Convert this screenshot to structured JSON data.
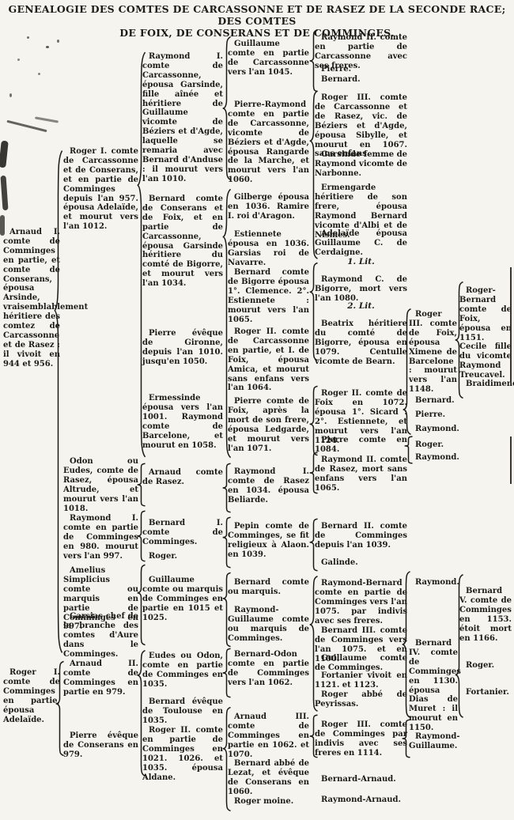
{
  "title": {
    "line1": "GENEALOGIE DES COMTES DE CARCASSONNE ET DE RASEZ DE LA SECONDE RACE; DES COMTES",
    "line2": "DE FOIX, DE CONSERANS ET DE COMMINGES."
  },
  "colors": {
    "ink": "#1d1b18",
    "paper": "#f6f4ef"
  },
  "generations": {
    "col1": [
      "Arnaud I. comte de Comminges en partie, et comte de Conserans, épousa Arsinde, vraisemblablement héritiere des comtez de Carcassonne et de Rasez : il vivoit en 944 et 956.",
      "Roger I. comte de Comminges en partie, épousa Adelaïde."
    ],
    "col2": [
      "Roger I. comte de Carcassonne et de Conserans, et en partie de Comminges depuis l'an 957. épousa Adelaïde, et mourut vers l'an 1012.",
      "Odon ou Eudes, comte de Rasez, épousa Altrude, et mourut vers l'an 1018.",
      "Raymond I. comte en partie de Comminges en 980. mourut vers l'an 997.",
      "Amelius Simplicius comte ou marquis en partie de Comminges en 997.",
      "Garsias chef de la branche des comtes d'Aure dans le Comminges.",
      "Arnaud II. comte de Comminges en partie en 979.",
      "Pierre évêque de Conserans en 979."
    ],
    "col3": [
      "Raymond I. comte de Carcassonne, épousa Garsinde, fille aînée et héritiere de Guillaume vicomte de Béziers et d'Agde, laquelle se remaria avec Bernard d'Anduse : il mourut vers l'an 1010.",
      "Bernard comte de Conserans et de Foix, et en partie de Carcassonne, épousa Garsinde héritiere du comté de Bigorre, et mourut vers l'an 1034.",
      "Pierre évêque de Gironne, depuis l'an 1010. jusqu'en 1050.",
      "Ermessinde épousa vers l'an 1001. Raymond comte de Barcelone, et mourut en 1058.",
      "Arnaud comte de Rasez.",
      "Bernard I. comte de Comminges.",
      "Roger.",
      "Guillaume comte ou marquis de Comminges en partie en 1015 et 1025.",
      "Eudes ou Odon, comte en partie de Comminges en 1035.",
      "Bernard évêque de Toulouse en 1035.",
      "Roger II. comte en partie de Comminges en 1021. 1026. et 1035. épousa Aldane."
    ],
    "col4": [
      "Guillaume comte en partie de Carcassonne vers l'an 1045.",
      "Pierre-Raymond comte en partie de Carcassonne, vicomte de Béziers et d'Agde, épousa Rangarde de la Marche, et mourut vers l'an 1060.",
      "Gilberge épousa en 1036. Ramire I. roi d'Aragon.",
      "Estiennete épousa en 1036. Garsias roi de Navarre.",
      "Bernard comte de Bigorre épousa 1°. Clemence. 2°. Estiennete : mourut vers l'an 1065.",
      "Roger II. comte de Carcassonne en partie, et I. de Foix, épousa Amica, et mourut sans enfans vers l'an 1064.",
      "Pierre comte de Foix, après la mort de son frere, épousa Ledgarde, et mourut vers l'an 1071.",
      "Raymond I. comte de Rasez en 1034. épousa Beliarde.",
      "Pepin comte de Comminges, se fit religieux à Alaon. en 1039.",
      "Bernard comte ou marquis.",
      "Raymond-Guillaume comte ou marquis de Comminges.",
      "Bernard-Odon comte en partie de Comminges vers l'an 1062.",
      "Arnaud III. comte de Comminges en partie en 1062. et 1070.",
      "Bernard abbé de Lezat, et évêque de Conserans en 1060.",
      "Roger moine."
    ],
    "col5": [
      "Raymond II. comte en partie de Carcassonne avec ses freres.",
      "Pierre.",
      "Bernard.",
      "Roger III. comte de Carcassonne et de Rasez, vic. de Béziers et d'Agde, épousa Sibylle, et mourut en 1067. sans enfans.",
      "Garsinde femme de Raymond vicomte de Narbonne.",
      "Ermengarde héritiere de son frere, épousa Raymond Bernard vicomte d'Albi et de Nismes.",
      "Adelaïde épousa Guillaume C. de Cerdaigne.",
      "1. Lit.",
      "Raymond C. de Bigorre, mort vers l'an 1080.",
      "2. Lit.",
      "Beatrix héritiere du comté de Bigorre, épousa en 1079. Centulle vicomte de Bearn.",
      "Roger II. comte de Foix en 1072. épousa 1°. Sicard : 2°. Estiennete, et mourut vers l'an 1124.",
      "Pierre comte en 1084.",
      "Raymond II. comte de Rasez, mort sans enfans vers l'an 1065.",
      "Bernard II. comte de Comminges depuis l'an 1039.",
      "Galinde.",
      "Raymond-Bernard comte en partie de Comminges vers l'an 1075. par indivis avec ses freres.",
      "Bernard III. comte de Comminges vers l'an 1075. et en 1100.",
      "Guillaume comte de Comminges.",
      "Fortanier vivoit en 1121. et 1123.",
      "Roger abbé de Peyrissas.",
      "Roger III. comte de Comminges par indivis avec ses freres en 1114.",
      "Bernard-Arnaud.",
      "Raymond-Arnaud."
    ],
    "col6": [
      "Roger III. comte de Foix, épousa Ximene de Barcelone : mourut vers l'an 1148.",
      "Bernard.",
      "Pierre.",
      "Raymond.",
      "Roger.",
      "Raymond.",
      "Raymond.",
      "Bernard IV. comte de Comminges en 1130. épousa Dias de Muret : il mourut en 1150.",
      "Raymond-Guillaume."
    ],
    "col7": [
      "Roger-Bernard comte de Foix, épousa en 1151. Cecile fille du vicomte Raymond Treucavel.",
      "Braidimene",
      "Bernard V. comte de Comminges en 1153. étoit mort en 1166.",
      "Roger.",
      "Fortanier."
    ]
  }
}
